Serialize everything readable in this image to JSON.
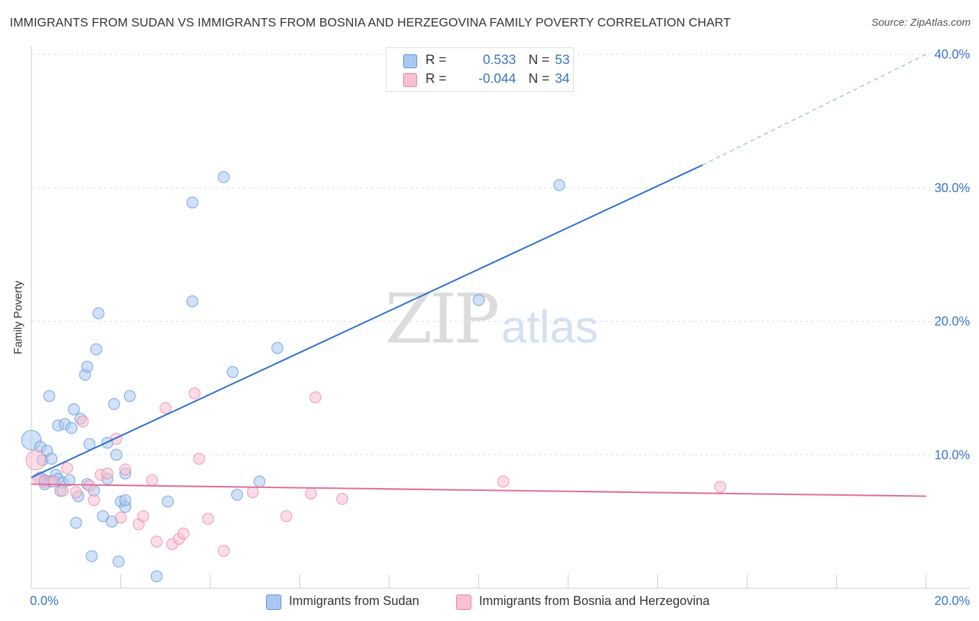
{
  "title": "IMMIGRANTS FROM SUDAN VS IMMIGRANTS FROM BOSNIA AND HERZEGOVINA FAMILY POVERTY CORRELATION CHART",
  "source": "Source: ZipAtlas.com",
  "watermark": {
    "zip": "ZIP",
    "atlas": "atlas"
  },
  "legend_top": {
    "rows": [
      {
        "r_label": "R =",
        "r_value": "0.533",
        "n_label": "N =",
        "n_value": "53",
        "color": "#a9c8f2",
        "border": "#5b8fd6"
      },
      {
        "r_label": "R =",
        "r_value": "-0.044",
        "n_label": "N =",
        "n_value": "34",
        "color": "#f9c0d0",
        "border": "#e8809f"
      }
    ]
  },
  "legend_bottom": [
    {
      "label": "Immigrants from Sudan",
      "color": "#a9c8f2",
      "border": "#5b8fd6"
    },
    {
      "label": "Immigrants from Bosnia and Herzegovina",
      "color": "#f9c0d0",
      "border": "#e8809f"
    }
  ],
  "chart_data": {
    "type": "scatter",
    "ylabel": "Family Poverty",
    "xlabel": "",
    "xlim": [
      0,
      20
    ],
    "ylim": [
      0,
      40
    ],
    "x_tick_labels": [
      {
        "value": 0,
        "label": "0.0%"
      },
      {
        "value": 20,
        "label": "20.0%"
      }
    ],
    "y_tick_labels": [
      {
        "value": 10,
        "label": "10.0%"
      },
      {
        "value": 20,
        "label": "20.0%"
      },
      {
        "value": 30,
        "label": "30.0%"
      },
      {
        "value": 40,
        "label": "40.0%"
      }
    ],
    "grid": true,
    "legend_position": "top-center",
    "series": [
      {
        "name": "Immigrants from Sudan",
        "color": "#5b8fd6",
        "fill": "#a9c8f2",
        "points": [
          [
            0.0,
            11.1
          ],
          [
            0.2,
            10.6
          ],
          [
            0.25,
            9.6
          ],
          [
            0.35,
            10.3
          ],
          [
            0.45,
            9.7
          ],
          [
            0.3,
            8.1
          ],
          [
            0.2,
            8.3
          ],
          [
            0.55,
            8.5
          ],
          [
            0.6,
            8.2
          ],
          [
            0.7,
            7.9
          ],
          [
            0.4,
            14.4
          ],
          [
            0.6,
            12.2
          ],
          [
            0.75,
            12.3
          ],
          [
            0.9,
            12.0
          ],
          [
            0.95,
            13.4
          ],
          [
            1.1,
            12.7
          ],
          [
            1.2,
            16.0
          ],
          [
            1.25,
            16.6
          ],
          [
            1.45,
            17.9
          ],
          [
            1.5,
            20.6
          ],
          [
            1.3,
            10.8
          ],
          [
            1.25,
            7.8
          ],
          [
            0.65,
            7.3
          ],
          [
            1.05,
            6.9
          ],
          [
            1.4,
            7.3
          ],
          [
            1.7,
            10.9
          ],
          [
            1.85,
            13.8
          ],
          [
            2.2,
            14.4
          ],
          [
            1.9,
            10.0
          ],
          [
            2.0,
            6.5
          ],
          [
            2.1,
            8.6
          ],
          [
            1.7,
            8.2
          ],
          [
            2.1,
            6.1
          ],
          [
            2.1,
            6.6
          ],
          [
            1.6,
            5.4
          ],
          [
            1.8,
            5.0
          ],
          [
            1.0,
            4.9
          ],
          [
            1.35,
            2.4
          ],
          [
            1.95,
            2.0
          ],
          [
            2.8,
            0.9
          ],
          [
            3.05,
            6.5
          ],
          [
            3.6,
            28.9
          ],
          [
            4.3,
            30.8
          ],
          [
            3.6,
            21.5
          ],
          [
            4.5,
            16.2
          ],
          [
            4.6,
            7.0
          ],
          [
            5.1,
            8.0
          ],
          [
            5.5,
            18.0
          ],
          [
            10.0,
            21.6
          ],
          [
            11.8,
            30.2
          ],
          [
            0.3,
            7.8
          ],
          [
            0.45,
            8.0
          ],
          [
            0.85,
            8.1
          ]
        ],
        "trend": {
          "x0": 0,
          "y0": 8.3,
          "x1": 15.0,
          "y1": 31.7,
          "dashed_to_x": 20,
          "dashed_to_y": 40.0
        }
      },
      {
        "name": "Immigrants from Bosnia and Herzegovina",
        "color": "#e8809f",
        "fill": "#f9c0d0",
        "points": [
          [
            0.1,
            9.6
          ],
          [
            0.15,
            8.2
          ],
          [
            0.3,
            8.0
          ],
          [
            0.5,
            8.0
          ],
          [
            0.7,
            7.3
          ],
          [
            0.8,
            9.0
          ],
          [
            1.0,
            7.2
          ],
          [
            1.15,
            12.5
          ],
          [
            1.3,
            7.7
          ],
          [
            1.4,
            6.6
          ],
          [
            1.55,
            8.5
          ],
          [
            1.7,
            8.6
          ],
          [
            1.9,
            11.2
          ],
          [
            2.1,
            8.9
          ],
          [
            2.0,
            5.3
          ],
          [
            2.4,
            4.8
          ],
          [
            2.5,
            5.4
          ],
          [
            2.7,
            8.1
          ],
          [
            2.8,
            3.5
          ],
          [
            3.0,
            13.5
          ],
          [
            3.15,
            3.3
          ],
          [
            3.3,
            3.7
          ],
          [
            3.4,
            4.1
          ],
          [
            3.65,
            14.6
          ],
          [
            3.75,
            9.7
          ],
          [
            3.95,
            5.2
          ],
          [
            4.3,
            2.8
          ],
          [
            4.95,
            7.2
          ],
          [
            5.7,
            5.4
          ],
          [
            6.25,
            7.1
          ],
          [
            6.35,
            14.3
          ],
          [
            6.95,
            6.7
          ],
          [
            10.55,
            8.0
          ],
          [
            15.4,
            7.6
          ]
        ],
        "trend": {
          "x0": 0,
          "y0": 7.8,
          "x1": 20,
          "y1": 6.9
        }
      }
    ]
  }
}
